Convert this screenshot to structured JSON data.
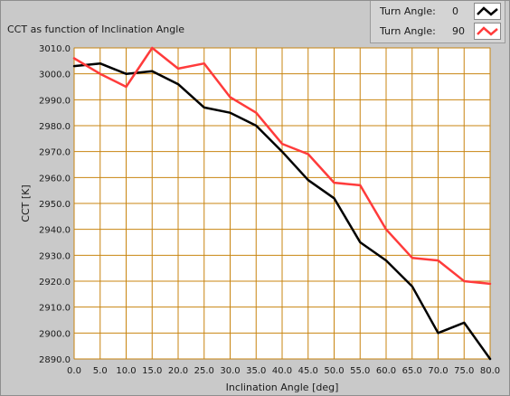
{
  "chart_data": {
    "type": "line",
    "title": "CCT as function of Inclination Angle",
    "xlabel": "Inclination Angle [deg]",
    "ylabel": "CCT [K]",
    "xlim": [
      0.0,
      80.0
    ],
    "ylim": [
      2890.0,
      3010.0
    ],
    "x_ticks": [
      "0.0",
      "5.0",
      "10.0",
      "15.0",
      "20.0",
      "25.0",
      "30.0",
      "35.0",
      "40.0",
      "45.0",
      "50.0",
      "55.0",
      "60.0",
      "65.0",
      "70.0",
      "75.0",
      "80.0"
    ],
    "y_ticks": [
      "2890.0",
      "2900.0",
      "2910.0",
      "2920.0",
      "2930.0",
      "2940.0",
      "2950.0",
      "2960.0",
      "2970.0",
      "2980.0",
      "2990.0",
      "3000.0",
      "3010.0"
    ],
    "grid": true,
    "legend_position": "top-right",
    "x": [
      0,
      5,
      10,
      15,
      20,
      25,
      30,
      35,
      40,
      45,
      50,
      55,
      60,
      65,
      70,
      75,
      80
    ],
    "series": [
      {
        "name": "Turn Angle:",
        "legend_value": "0",
        "color": "#000000",
        "values": [
          3003,
          3004,
          3000,
          3001,
          2996,
          2987,
          2985,
          2980,
          2970,
          2959,
          2952,
          2935,
          2928,
          2918,
          2900,
          2904,
          2890
        ]
      },
      {
        "name": "Turn Angle:",
        "legend_value": "90",
        "color": "#ff3b3b",
        "values": [
          3006,
          3000,
          2995,
          3010,
          3002,
          3004,
          2991,
          2985,
          2973,
          2969,
          2958,
          2957,
          2940,
          2929,
          2928,
          2920,
          2919
        ]
      }
    ],
    "colors": {
      "panel_bg": "#c9c9c9",
      "plot_bg": "#ffffff",
      "grid": "#c88410"
    }
  }
}
